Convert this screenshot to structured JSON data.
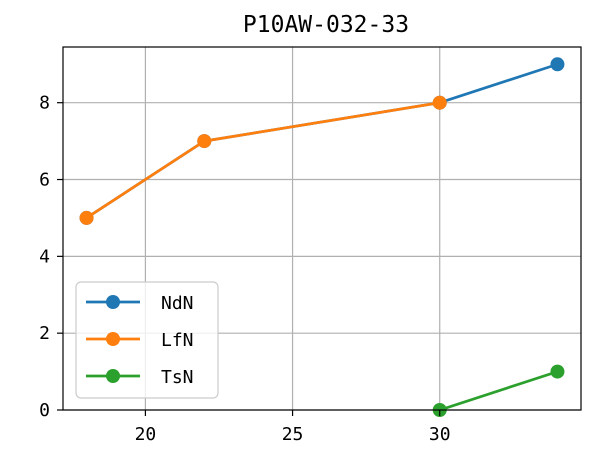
{
  "chart_data": {
    "type": "line",
    "title": "P10AW-032-33",
    "xlabel": "",
    "ylabel": "",
    "xlim": [
      17.2,
      34.8
    ],
    "ylim": [
      0,
      9.45
    ],
    "xticks": [
      20,
      25,
      30
    ],
    "yticks": [
      0,
      2,
      4,
      6,
      8
    ],
    "grid": true,
    "legend": "lower-left",
    "series": [
      {
        "name": "NdN",
        "color": "#1f77b4",
        "x": [
          18,
          22,
          30,
          34
        ],
        "y": [
          5,
          7,
          8,
          9
        ]
      },
      {
        "name": "LfN",
        "color": "#ff7f0e",
        "x": [
          18,
          22,
          30
        ],
        "y": [
          5,
          7,
          8
        ]
      },
      {
        "name": "TsN",
        "color": "#2ca02c",
        "x": [
          30,
          34
        ],
        "y": [
          0,
          1
        ]
      }
    ]
  }
}
